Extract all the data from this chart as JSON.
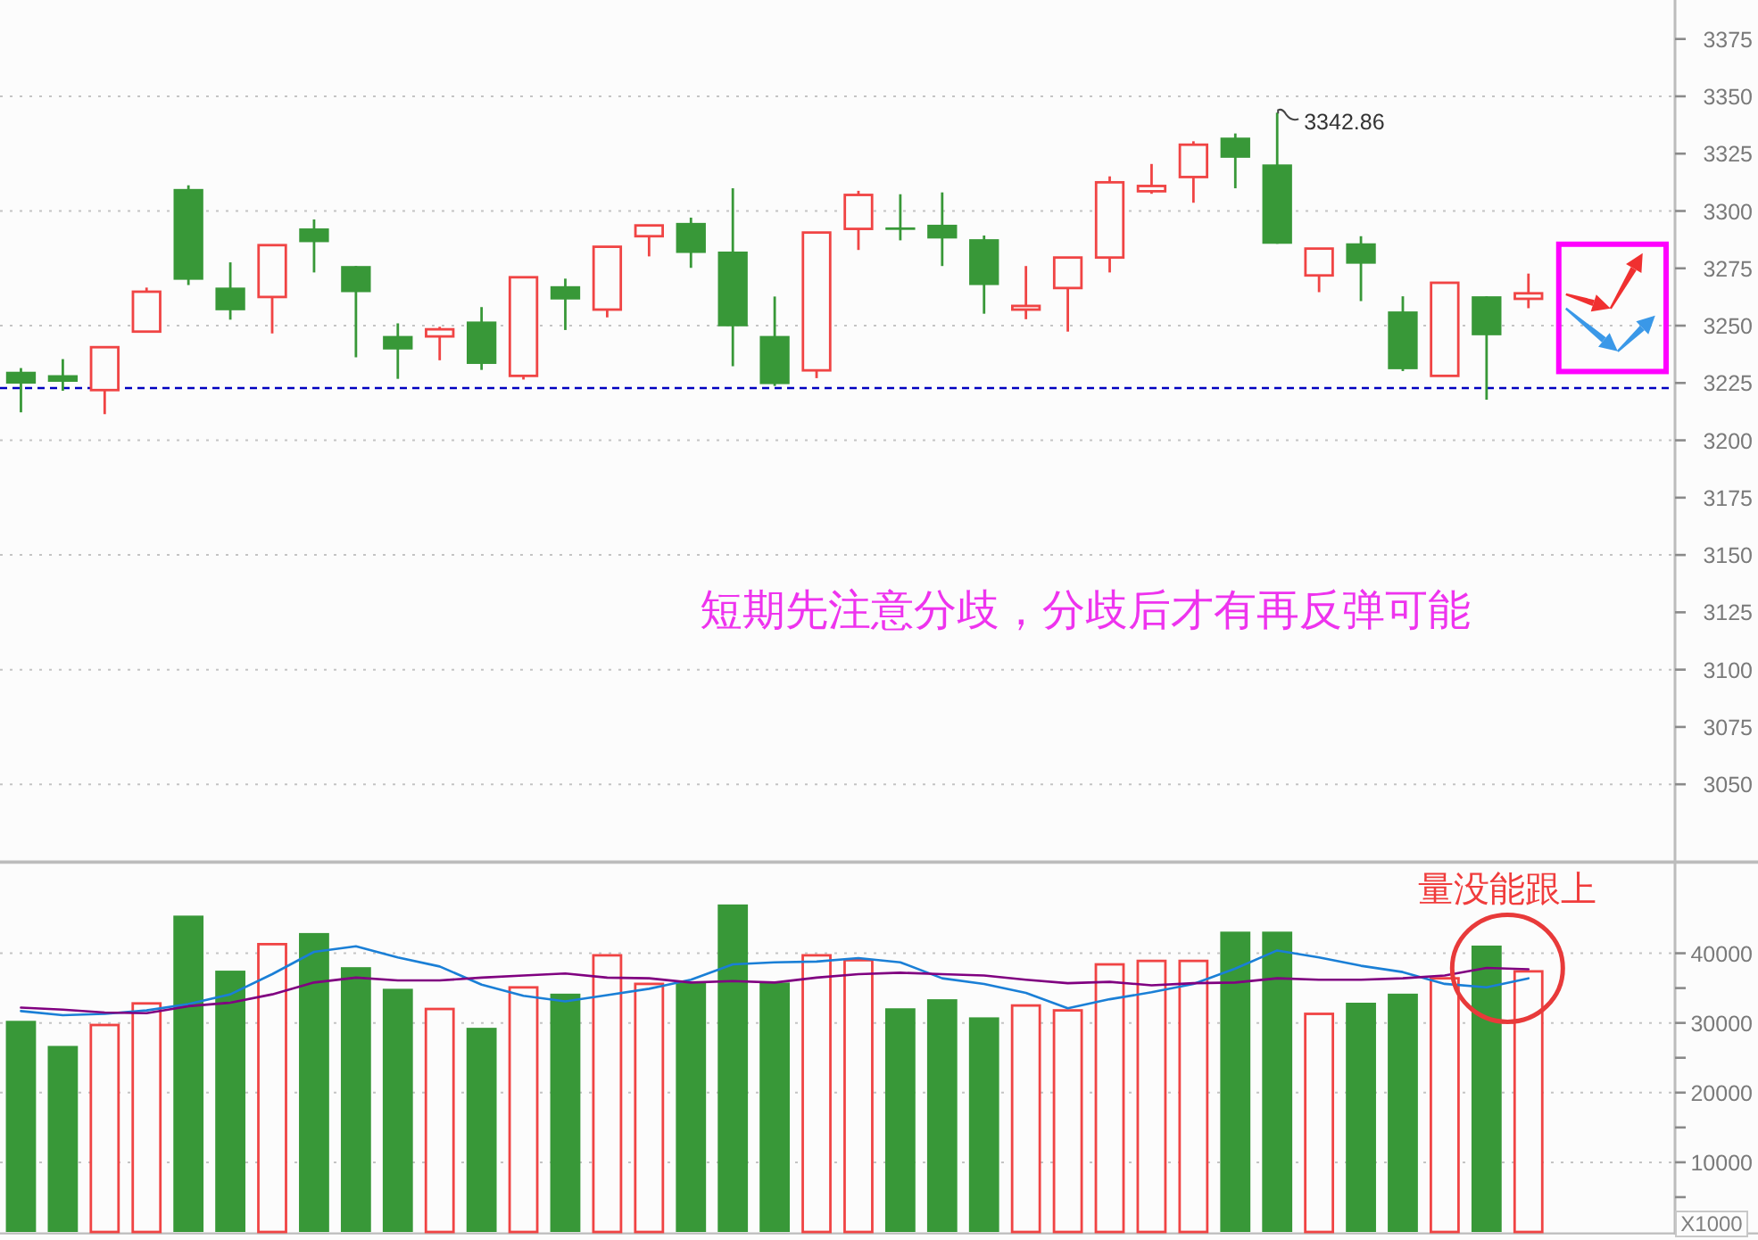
{
  "chart_data": [
    {
      "type": "candlestick",
      "categories": [
        null,
        null,
        null,
        null,
        null,
        null,
        null,
        null,
        null,
        null,
        null,
        null,
        null,
        null,
        null,
        null,
        null,
        null,
        null,
        null,
        null,
        null,
        null,
        null,
        null,
        null,
        null,
        null,
        null,
        null,
        null,
        null,
        null,
        null,
        null,
        null,
        null,
        null,
        null,
        null
      ],
      "ohlc": [
        [
          3229.9,
          3231.5,
          3212.2,
          3224.7
        ],
        [
          3228.4,
          3235.4,
          3221.6,
          3225.5
        ],
        [
          3221.9,
          3240.6,
          3211.4,
          3240.6
        ],
        [
          3247.4,
          3266.6,
          3247.4,
          3264.8
        ],
        [
          3309.6,
          3311.2,
          3267.7,
          3270.0
        ],
        [
          3266.6,
          3277.6,
          3252.6,
          3256.7
        ],
        [
          3262.5,
          3285.1,
          3246.6,
          3285.1
        ],
        [
          3292.4,
          3296.3,
          3273.2,
          3286.4
        ],
        [
          3276.0,
          3276.0,
          3236.2,
          3264.6
        ],
        [
          3245.5,
          3251.0,
          3226.8,
          3239.6
        ],
        [
          3245.3,
          3249.5,
          3234.9,
          3248.4
        ],
        [
          3251.8,
          3258.1,
          3230.7,
          3233.3
        ],
        [
          3228.1,
          3271.1,
          3226.5,
          3271.1
        ],
        [
          3267.2,
          3270.5,
          3248.1,
          3261.4
        ],
        [
          3257.0,
          3284.4,
          3253.6,
          3284.4
        ],
        [
          3289.0,
          3293.7,
          3280.2,
          3293.7
        ],
        [
          3294.8,
          3297.1,
          3275.2,
          3281.7
        ],
        [
          3282.3,
          3309.9,
          3232.3,
          3249.7
        ],
        [
          3245.5,
          3262.7,
          3223.7,
          3224.5
        ],
        [
          3230.5,
          3290.6,
          3227.1,
          3290.6
        ],
        [
          3292.2,
          3308.8,
          3283.0,
          3307.0
        ],
        [
          3292.4,
          3307.3,
          3287.2,
          3292.2
        ],
        [
          3294.0,
          3308.1,
          3276.0,
          3288.0
        ],
        [
          3287.7,
          3289.3,
          3255.2,
          3267.7
        ],
        [
          3257.0,
          3276.0,
          3252.8,
          3258.6
        ],
        [
          3266.4,
          3279.7,
          3247.4,
          3279.7
        ],
        [
          3279.7,
          3315.1,
          3273.2,
          3312.5
        ],
        [
          3308.6,
          3320.5,
          3307.5,
          3310.9
        ],
        [
          3314.8,
          3330.4,
          3303.6,
          3328.9
        ],
        [
          3332.0,
          3333.8,
          3309.9,
          3323.2
        ],
        [
          3320.3,
          3342.86,
          3285.7,
          3285.7
        ],
        [
          3271.9,
          3283.6,
          3264.6,
          3283.6
        ],
        [
          3285.9,
          3289.0,
          3260.7,
          3277.0
        ],
        [
          3256.2,
          3262.8,
          3230.2,
          3231.0
        ],
        [
          3228.1,
          3268.7,
          3228.1,
          3268.7
        ],
        [
          3262.8,
          3262.8,
          3217.7,
          3245.8
        ],
        [
          3261.7,
          3272.7,
          3257.6,
          3264.1
        ],
        null,
        null,
        null
      ],
      "colors": [
        "#389838",
        "#389838",
        "#f04444",
        "#f04444",
        "#389838",
        "#389838",
        "#f04444",
        "#389838",
        "#389838",
        "#389838",
        "#f04444",
        "#389838",
        "#f04444",
        "#389838",
        "#f04444",
        "#f04444",
        "#389838",
        "#389838",
        "#389838",
        "#f04444",
        "#f04444",
        "#389838",
        "#389838",
        "#389838",
        "#f04444",
        "#f04444",
        "#f04444",
        "#f04444",
        "#f04444",
        "#389838",
        "#389838",
        "#f04444",
        "#389838",
        "#389838",
        "#f04444",
        "#389838",
        "#f04444",
        null,
        null,
        null
      ],
      "ylim": [
        3017,
        3392
      ],
      "yticks": [
        3050,
        3075,
        3100,
        3125,
        3150,
        3175,
        3200,
        3225,
        3250,
        3275,
        3300,
        3325,
        3350,
        3375
      ],
      "grid": "y",
      "tick_labels": "y",
      "ref_lines": [
        {
          "axis": "y",
          "value": 3222.8,
          "color": "#0000c0",
          "line_style": "dashed"
        }
      ],
      "annotations": [
        "3342.86",
        "短期先注意分歧，分歧后才有再反弹可能"
      ]
    },
    {
      "type": "bar",
      "categories": [
        null,
        null,
        null,
        null,
        null,
        null,
        null,
        null,
        null,
        null,
        null,
        null,
        null,
        null,
        null,
        null,
        null,
        null,
        null,
        null,
        null,
        null,
        null,
        null,
        null,
        null,
        null,
        null,
        null,
        null,
        null,
        null,
        null,
        null,
        null,
        null,
        null,
        null,
        null,
        null
      ],
      "series": [
        {
          "type": "bar",
          "colors": [
            "#389838",
            "#389838",
            "#f04444",
            "#f04444",
            "#389838",
            "#389838",
            "#f04444",
            "#389838",
            "#389838",
            "#389838",
            "#f04444",
            "#389838",
            "#f04444",
            "#389838",
            "#f04444",
            "#f04444",
            "#389838",
            "#389838",
            "#389838",
            "#f04444",
            "#f04444",
            "#389838",
            "#389838",
            "#389838",
            "#f04444",
            "#f04444",
            "#f04444",
            "#f04444",
            "#f04444",
            "#389838",
            "#389838",
            "#f04444",
            "#389838",
            "#389838",
            "#f04444",
            "#389838",
            "#f04444",
            null,
            null,
            null
          ],
          "values": [
            30300,
            26700,
            29700,
            32800,
            45400,
            37500,
            41300,
            42900,
            38000,
            34900,
            32000,
            29300,
            35100,
            34200,
            39700,
            35600,
            35800,
            47000,
            35800,
            39700,
            39000,
            32100,
            33400,
            30800,
            32500,
            31800,
            38400,
            38900,
            38900,
            43100,
            43100,
            31300,
            32900,
            34200,
            36400,
            41100,
            37400,
            null,
            null,
            null
          ]
        },
        {
          "type": "line",
          "color": "#1a7fd6",
          "values": [
            31700,
            31100,
            31300,
            31800,
            32700,
            34100,
            37000,
            40200,
            41000,
            39400,
            38100,
            35500,
            33900,
            33100,
            34000,
            34900,
            36200,
            38400,
            38700,
            38800,
            39300,
            38700,
            36400,
            35600,
            34300,
            32100,
            33400,
            34400,
            35600,
            37800,
            40400,
            39400,
            38200,
            37300,
            35600,
            35100,
            36400,
            null,
            null,
            null
          ]
        },
        {
          "type": "line",
          "color": "#800080",
          "values": [
            32200,
            31900,
            31500,
            31400,
            32400,
            32900,
            34100,
            35800,
            36500,
            36100,
            36100,
            36500,
            36800,
            37100,
            36500,
            36400,
            35800,
            36000,
            35800,
            36500,
            37000,
            37200,
            37000,
            36800,
            36200,
            35700,
            35900,
            35400,
            35700,
            35800,
            36400,
            36200,
            36200,
            36400,
            36800,
            37900,
            37700,
            null,
            null,
            null
          ]
        }
      ],
      "ylim": [
        0,
        53000
      ],
      "yticks": [
        {
          "value": 5000,
          "label": null
        },
        10000,
        {
          "value": 15000,
          "label": null
        },
        20000,
        {
          "value": 25000,
          "label": null
        },
        30000,
        {
          "value": 35000,
          "label": null
        },
        40000
      ],
      "ylabel": "X1000",
      "grid": "y",
      "tick_labels": "y",
      "annotations": [
        "量没能跟上"
      ]
    }
  ]
}
